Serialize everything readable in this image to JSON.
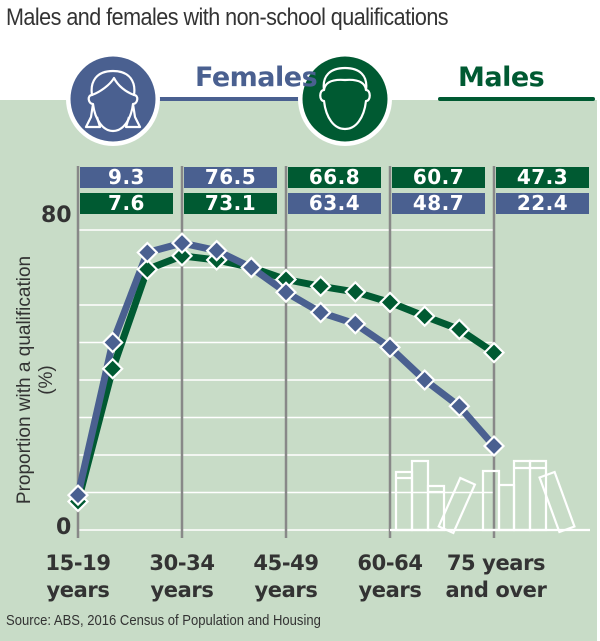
{
  "title": "Males and females with non-school qualifications",
  "legend": {
    "females_label": "Females",
    "males_label": "Males"
  },
  "colors": {
    "female": "#4a6090",
    "male": "#005a32",
    "background": "#c8dcc7",
    "gridline": "#ffffff",
    "axis_line": "#888888",
    "text": "#333333"
  },
  "axis": {
    "ylabel_line1": "Proportion with a qualification",
    "ylabel_line2": "(%)",
    "y_ticks": [
      "80",
      "0"
    ],
    "x_ticks": [
      {
        "line1": "15-19",
        "line2": "years"
      },
      {
        "line1": "30-34",
        "line2": "years"
      },
      {
        "line1": "45-49",
        "line2": "years"
      },
      {
        "line1": "60-64",
        "line2": "years"
      },
      {
        "line1": "75 years",
        "line2": "and over"
      }
    ]
  },
  "value_boxes": [
    {
      "top": {
        "value": "9.3",
        "series": "female"
      },
      "bottom": {
        "value": "7.6",
        "series": "male"
      }
    },
    {
      "top": {
        "value": "76.5",
        "series": "female"
      },
      "bottom": {
        "value": "73.1",
        "series": "male"
      }
    },
    {
      "top": {
        "value": "66.8",
        "series": "male"
      },
      "bottom": {
        "value": "63.4",
        "series": "female"
      }
    },
    {
      "top": {
        "value": "60.7",
        "series": "male"
      },
      "bottom": {
        "value": "48.7",
        "series": "female"
      }
    },
    {
      "top": {
        "value": "47.3",
        "series": "male"
      },
      "bottom": {
        "value": "22.4",
        "series": "female"
      }
    }
  ],
  "source": "Source: ABS, 2016 Census of Population and Housing",
  "chart_data": {
    "type": "line",
    "title": "Males and females with non-school qualifications",
    "xlabel": "",
    "ylabel": "Proportion with a qualification (%)",
    "ylim": [
      0,
      80
    ],
    "grid": true,
    "legend_position": "top",
    "categories": [
      "15-19",
      "20-24",
      "25-29",
      "30-34",
      "35-39",
      "40-44",
      "45-49",
      "50-54",
      "55-59",
      "60-64",
      "65-69",
      "70-74",
      "75 years and over"
    ],
    "labeled_categories": [
      "15-19 years",
      "30-34 years",
      "45-49 years",
      "60-64 years",
      "75 years and over"
    ],
    "series": [
      {
        "name": "Females",
        "color": "#4a6090",
        "values": [
          9.3,
          50.0,
          74.0,
          76.5,
          74.5,
          70.0,
          63.4,
          58.0,
          55.0,
          48.7,
          40.0,
          33.0,
          22.4
        ]
      },
      {
        "name": "Males",
        "color": "#005a32",
        "values": [
          7.6,
          43.0,
          69.5,
          73.1,
          72.0,
          70.0,
          66.8,
          65.0,
          63.5,
          60.7,
          57.0,
          53.5,
          47.3
        ]
      }
    ],
    "annotations": [
      "Labeled values shown at 15-19, 30-34, 45-49, 60-64 and 75 years and over"
    ],
    "source": "Source: ABS, 2016 Census of Population and Housing"
  }
}
